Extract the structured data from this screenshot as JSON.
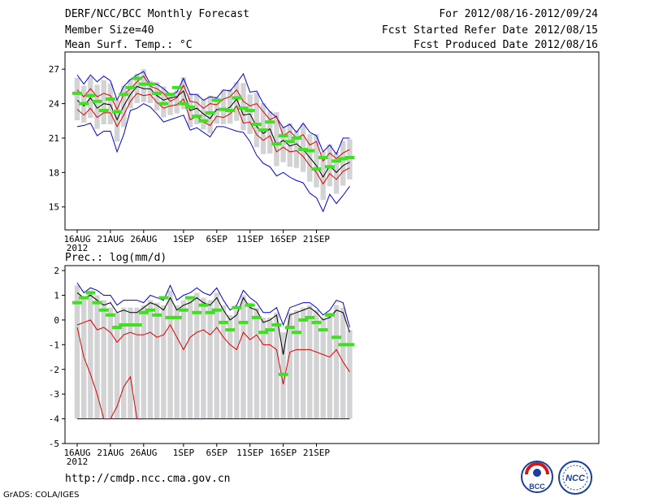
{
  "header": {
    "title": "DERF/NCC/BCC Monthly Forecast",
    "member_size": "Member Size=40",
    "variable": "Mean Surf. Temp.: °C",
    "forecast_period": "For 2012/08/16-2012/09/24",
    "started_refer_date": "Fcst Started Refer Date 2012/08/15",
    "produced_date": "Fcst Produced Date 2012/08/16"
  },
  "footer": {
    "url": "http://cmdp.ncc.cma.gov.cn",
    "credit": "GrADS: COLA/IGES",
    "logo_left_text": "BCC",
    "logo_right_text": "NCC"
  },
  "colors": {
    "box": "#d3d3d5",
    "median": "#40e020",
    "mean": "#000000",
    "std": "#e00000",
    "extreme": "#0000e0"
  },
  "chart_data": [
    {
      "type": "box-ensemble",
      "title": "Mean Surf. Temp.: °C",
      "x_tick_labels": [
        "16AUG\n2012",
        "21AUG",
        "26AUG",
        "1SEP",
        "6SEP",
        "11SEP",
        "16SEP",
        "21SEP"
      ],
      "x_tick_days": [
        0,
        5,
        10,
        16,
        21,
        26,
        31,
        36
      ],
      "ylim": [
        13,
        28.5
      ],
      "y_ticks": [
        15,
        18,
        21,
        24,
        27
      ],
      "days": 39,
      "series": [
        {
          "name": "max",
          "values": [
            26.5,
            25.7,
            26.5,
            25.9,
            26.4,
            26.0,
            24.3,
            25.5,
            26.1,
            26.5,
            26.8,
            25.7,
            25.7,
            25.3,
            24.8,
            25.0,
            26.2,
            24.8,
            24.8,
            24.3,
            24.6,
            24.5,
            25.2,
            25.1,
            25.8,
            26.6,
            25.0,
            25.1,
            24.0,
            23.3,
            22.8,
            21.9,
            22.2,
            21.5,
            22.3,
            21.5,
            21.2,
            19.8,
            20.4,
            19.6,
            21.0,
            21.0
          ]
        },
        {
          "name": "p_hi",
          "values": [
            25.2,
            24.6,
            25.3,
            24.6,
            24.9,
            24.7,
            23.5,
            24.8,
            25.3,
            25.9,
            26.4,
            25.5,
            25.3,
            24.9,
            24.2,
            24.5,
            25.6,
            24.2,
            24.1,
            23.6,
            24.0,
            23.9,
            24.4,
            24.6,
            25.2,
            24.2,
            23.8,
            24.0,
            23.3,
            22.6,
            22.9,
            21.2,
            21.6,
            21.0,
            21.3,
            20.4,
            20.7,
            19.0,
            19.7,
            19.2,
            19.7,
            20.0
          ]
        },
        {
          "name": "mean",
          "values": [
            24.3,
            23.8,
            24.5,
            23.6,
            24.0,
            23.9,
            22.6,
            23.8,
            24.8,
            25.5,
            25.3,
            25.3,
            24.7,
            24.3,
            24.5,
            24.6,
            25.1,
            23.4,
            23.6,
            23.1,
            22.7,
            23.5,
            23.4,
            23.7,
            24.4,
            23.0,
            23.1,
            22.0,
            21.4,
            21.8,
            20.4,
            20.8,
            20.3,
            20.5,
            20.0,
            19.3,
            18.6,
            17.6,
            18.6,
            18.0,
            18.6,
            18.9
          ]
        },
        {
          "name": "p_lo",
          "values": [
            23.5,
            23.0,
            23.6,
            22.8,
            23.2,
            23.2,
            22.0,
            23.0,
            24.2,
            24.9,
            24.7,
            24.8,
            24.1,
            23.6,
            23.8,
            23.9,
            24.4,
            22.6,
            22.9,
            22.4,
            22.1,
            22.9,
            22.8,
            23.1,
            23.8,
            22.3,
            22.4,
            21.3,
            20.8,
            21.2,
            19.8,
            20.2,
            19.8,
            19.9,
            19.4,
            18.6,
            18.0,
            17.0,
            17.9,
            17.4,
            18.1,
            18.4
          ]
        },
        {
          "name": "min",
          "values": [
            22.0,
            22.1,
            22.3,
            21.2,
            21.6,
            21.6,
            19.8,
            21.3,
            23.4,
            23.6,
            24.0,
            23.7,
            23.1,
            22.4,
            22.6,
            22.8,
            23.0,
            21.7,
            21.9,
            21.5,
            21.1,
            22.0,
            22.0,
            21.8,
            21.6,
            21.5,
            20.7,
            19.5,
            18.8,
            18.5,
            17.7,
            18.0,
            17.6,
            17.3,
            17.1,
            16.2,
            15.8,
            14.6,
            16.1,
            15.3,
            16.0,
            16.8
          ]
        },
        {
          "name": "median",
          "values": [
            24.9,
            24.0,
            24.7,
            24.2,
            23.4,
            24.4,
            23.3,
            24.8,
            25.4,
            26.2,
            25.7,
            25.7,
            24.9,
            24.0,
            24.8,
            25.4,
            24.0,
            23.7,
            22.9,
            22.5,
            23.2,
            24.3,
            23.5,
            23.4,
            24.5,
            23.6,
            23.4,
            22.2,
            21.7,
            22.4,
            20.5,
            21.2,
            20.7,
            21.0,
            20.0,
            19.9,
            18.3,
            19.3,
            18.5,
            19.0,
            19.2,
            19.3
          ]
        }
      ]
    },
    {
      "type": "box-ensemble",
      "title": "Prec.: log(mm/d)",
      "x_tick_labels": [
        "16AUG\n2012",
        "21AUG",
        "26AUG",
        "1SEP",
        "6SEP",
        "11SEP",
        "16SEP",
        "21SEP"
      ],
      "x_tick_days": [
        0,
        5,
        10,
        16,
        21,
        26,
        31,
        36
      ],
      "ylim": [
        -5,
        2.2
      ],
      "y_ticks": [
        -5,
        -4,
        -3,
        -2,
        -1,
        0,
        1,
        2
      ],
      "days": 39,
      "series": [
        {
          "name": "max",
          "values": [
            1.5,
            1.1,
            1.3,
            1.2,
            1.0,
            1.0,
            0.6,
            0.8,
            0.8,
            0.8,
            0.7,
            1.0,
            0.9,
            0.8,
            1.4,
            0.8,
            1.0,
            1.1,
            1.3,
            1.1,
            1.0,
            1.3,
            0.8,
            0.4,
            0.6,
            1.2,
            0.9,
            0.7,
            0.3,
            0.3,
            0.5,
            -0.2,
            0.5,
            0.6,
            0.7,
            0.7,
            0.5,
            0.2,
            0.4,
            0.8,
            0.7,
            -0.3
          ]
        },
        {
          "name": "mean",
          "values": [
            0.7,
            0.4,
            0.6,
            0.5,
            0.2,
            0.2,
            -0.2,
            0.0,
            0.0,
            0.0,
            0.1,
            0.3,
            0.2,
            0.0,
            0.5,
            -0.1,
            0.1,
            0.3,
            0.4,
            0.2,
            0.1,
            0.4,
            0.0,
            -0.3,
            -0.1,
            0.5,
            0.0,
            0.1,
            -0.4,
            -0.4,
            -0.1,
            -1.9,
            -0.2,
            -0.1,
            0.0,
            0.2,
            0.0,
            -0.4,
            -0.2,
            0.0,
            -0.2,
            -0.8
          ]
        },
        {
          "name": "std_hi",
          "values": [
            1.1,
            0.9,
            1.0,
            0.8,
            0.6,
            0.7,
            0.3,
            0.4,
            0.3,
            0.3,
            0.5,
            0.7,
            0.6,
            0.4,
            0.9,
            0.4,
            0.6,
            0.7,
            0.9,
            0.7,
            0.6,
            0.9,
            0.4,
            0.0,
            0.2,
            0.9,
            0.5,
            0.4,
            -0.1,
            0.0,
            0.2,
            -1.4,
            0.2,
            0.3,
            0.4,
            0.5,
            0.3,
            0.0,
            0.1,
            0.4,
            0.3,
            -0.5
          ]
        },
        {
          "name": "std_lo",
          "values": [
            -0.2,
            -0.1,
            0.0,
            -0.4,
            -0.3,
            -0.5,
            -0.9,
            -0.6,
            -0.5,
            -0.6,
            -0.6,
            -0.5,
            -0.7,
            -0.6,
            -0.2,
            -0.7,
            -1.2,
            -0.7,
            -0.5,
            -0.4,
            -0.6,
            -0.3,
            -0.7,
            -1.0,
            -1.2,
            -0.5,
            -0.8,
            -0.6,
            -1.0,
            -1.0,
            -1.2,
            -2.6,
            -1.3,
            -1.2,
            -1.2,
            -1.2,
            -1.3,
            -1.4,
            -1.5,
            -1.2,
            -1.7,
            -2.1
          ]
        },
        {
          "name": "std_lo2",
          "values": [
            -0.3,
            -1.5,
            -2.2,
            -3.0,
            -4.0,
            -4.0,
            -3.5,
            -2.7,
            -2.3,
            -4.0,
            -4.0
          ]
        },
        {
          "name": "min",
          "values": [
            -4,
            -4,
            -4,
            -4,
            -4,
            -4,
            -4,
            -4,
            -4,
            -4,
            -4,
            -4,
            -4,
            -4,
            -4,
            -4,
            -4,
            -4,
            -4,
            -4,
            -4,
            -4,
            -4,
            -4,
            -4,
            -4,
            -4,
            -4,
            -4,
            -4,
            -4,
            -4,
            -4,
            -4,
            -4,
            -4,
            -4,
            -4,
            -4,
            -4,
            -4,
            -4
          ]
        },
        {
          "name": "median",
          "values": [
            0.7,
            0.9,
            1.1,
            0.7,
            0.4,
            0.2,
            -0.3,
            -0.2,
            -0.2,
            -0.2,
            0.3,
            0.4,
            0.2,
            0.9,
            0.1,
            0.1,
            0.4,
            0.9,
            0.3,
            0.6,
            0.3,
            0.4,
            -0.1,
            -0.4,
            0.5,
            -0.1,
            0.6,
            0.1,
            -0.5,
            -0.4,
            -0.2,
            -2.2,
            -0.3,
            -0.5,
            0.0,
            0.1,
            -0.1,
            -0.4,
            0.2,
            -0.7,
            -1.0,
            -1.0
          ]
        },
        {
          "name": "box_top",
          "values": [
            1.4,
            0.9,
            1.2,
            1.0,
            0.8,
            0.5,
            0.3,
            0.5,
            0.5,
            0.5,
            0.6,
            0.8,
            0.7,
            0.6,
            1.2,
            0.6,
            0.8,
            0.9,
            1.1,
            0.9,
            0.8,
            1.1,
            0.6,
            0.2,
            0.4,
            1.0,
            0.7,
            0.5,
            0.1,
            0.1,
            0.3,
            -0.5,
            0.3,
            0.4,
            0.5,
            0.6,
            0.4,
            0.1,
            0.3,
            0.6,
            0.5,
            -0.4
          ]
        }
      ]
    }
  ]
}
